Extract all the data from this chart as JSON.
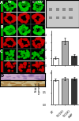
{
  "bg_color": "#ffffff",
  "left_panels": {
    "panel_A_label": "A",
    "panel_B_label": "B",
    "panel_C_label": "C",
    "panel_D_label": "D",
    "col_labels": [
      "WT",
      "KO",
      "KO+RAP"
    ],
    "green_bg": "#000000",
    "red_bg": "#000000",
    "histo1_color": "#c8a8c8",
    "histo2_color": "#c8b88a"
  },
  "gel_panel": {
    "bg": "#d0d0d0",
    "band_color": "#404040",
    "label_color": "#000000"
  },
  "panel_e": {
    "title": "E",
    "categories": [
      "WT",
      "TSC1KO",
      "TSC1KO\n+RAP"
    ],
    "values": [
      1.0,
      3.2,
      1.3
    ],
    "errors": [
      0.15,
      0.4,
      0.2
    ],
    "colors": [
      "#ffffff",
      "#aaaaaa",
      "#333333"
    ],
    "ylabel": "Relative\nexpression",
    "ylim": [
      0,
      4.5
    ],
    "yticks": [
      0,
      1,
      2,
      3,
      4
    ]
  },
  "panel_f": {
    "title": "F",
    "categories": [
      "WT",
      "TSC1KO",
      "TSC1KO\n+RAP"
    ],
    "values": [
      1.0,
      1.05,
      1.05
    ],
    "errors": [
      0.05,
      0.05,
      0.05
    ],
    "colors": [
      "#ffffff",
      "#aaaaaa",
      "#333333"
    ],
    "ylabel": "Relative\nexpression",
    "ylim": [
      0,
      1.4
    ],
    "yticks": [
      0,
      0.5,
      1.0
    ]
  }
}
